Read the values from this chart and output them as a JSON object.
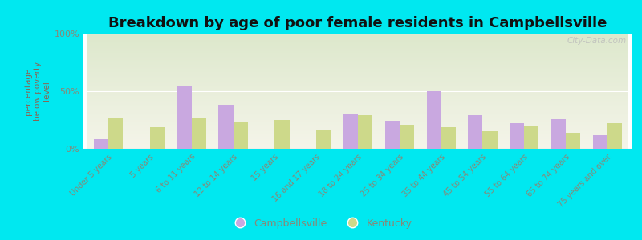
{
  "title": "Breakdown by age of poor female residents in Campbellsville",
  "ylabel": "percentage\nbelow poverty\nlevel",
  "categories": [
    "Under 5 years",
    "5 years",
    "6 to 11 years",
    "12 to 14 years",
    "15 years",
    "16 and 17 years",
    "18 to 24 years",
    "25 to 34 years",
    "35 to 44 years",
    "45 to 54 years",
    "55 to 64 years",
    "65 to 74 years",
    "75 years and over"
  ],
  "campbellsville": [
    8,
    0,
    55,
    38,
    0,
    0,
    30,
    24,
    50,
    29,
    22,
    26,
    12
  ],
  "kentucky": [
    27,
    19,
    27,
    23,
    25,
    17,
    29,
    21,
    19,
    15,
    20,
    14,
    22
  ],
  "campbellsville_color": "#c9a8e0",
  "kentucky_color": "#cdd98a",
  "plot_bg_top": "#dde8cc",
  "plot_bg_bottom": "#f5f5ea",
  "outer_bg": "#00e8f0",
  "ylim": [
    0,
    100
  ],
  "yticks": [
    0,
    50,
    100
  ],
  "ytick_labels": [
    "0%",
    "50%",
    "100%"
  ],
  "bar_width": 0.35,
  "title_fontsize": 13,
  "legend_labels": [
    "Campbellsville",
    "Kentucky"
  ],
  "watermark": "City-Data.com",
  "tick_color": "#888877",
  "ylabel_color": "#886655"
}
